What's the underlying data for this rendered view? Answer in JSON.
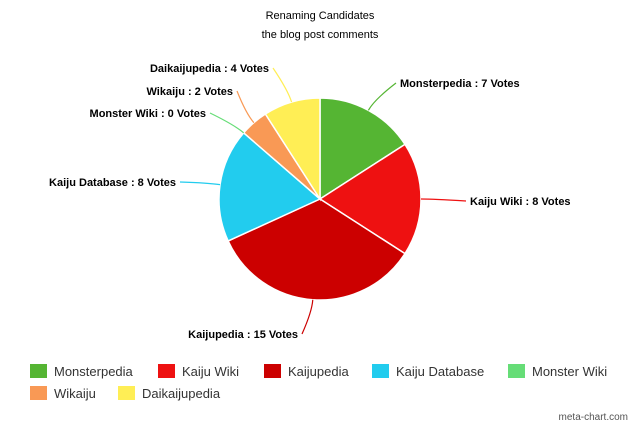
{
  "chart_data": {
    "type": "pie",
    "title": "Renaming Candidates",
    "subtitle": "the blog post comments",
    "label_suffix": " Votes",
    "slices": [
      {
        "name": "Monsterpedia",
        "value": 7,
        "color": "#55b533"
      },
      {
        "name": "Kaiju Wiki",
        "value": 8,
        "color": "#ee1111"
      },
      {
        "name": "Kaijupedia",
        "value": 15,
        "color": "#cc0000"
      },
      {
        "name": "Kaiju Database",
        "value": 8,
        "color": "#22ccee"
      },
      {
        "name": "Monster Wiki",
        "value": 0,
        "color": "#66dd77"
      },
      {
        "name": "Wikaiju",
        "value": 2,
        "color": "#f99955"
      },
      {
        "name": "Daikaijupedia",
        "value": 4,
        "color": "#ffee55"
      }
    ],
    "legend_position": "bottom"
  },
  "watermark": "meta-chart.com"
}
